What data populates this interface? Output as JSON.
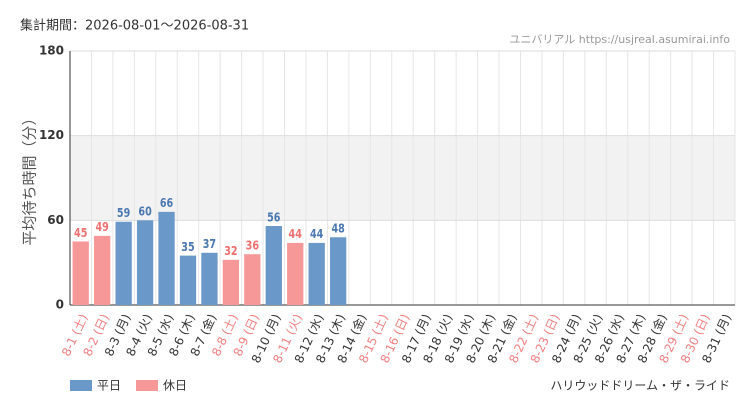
{
  "chart_data": {
    "type": "bar",
    "title": "集計期間：2026-08-01～2026-08-31",
    "watermark": "ユニバリアル https://usjreal.asumirai.info",
    "attraction": "ハリウッドドリーム・ザ・ライド",
    "y_label": "平均待ち時間（分）",
    "categories": [
      "8-1 (土)",
      "8-2 (日)",
      "8-3 (月)",
      "8-4 (火)",
      "8-5 (水)",
      "8-6 (木)",
      "8-7 (金)",
      "8-8 (土)",
      "8-9 (日)",
      "8-10 (月)",
      "8-11 (火)",
      "8-12 (水)",
      "8-13 (木)",
      "8-14 (金)",
      "8-15 (土)",
      "8-16 (日)",
      "8-17 (月)",
      "8-18 (火)",
      "8-19 (水)",
      "8-20 (木)",
      "8-21 (金)",
      "8-22 (土)",
      "8-23 (日)",
      "8-24 (月)",
      "8-25 (火)",
      "8-26 (水)",
      "8-27 (木)",
      "8-28 (金)",
      "8-29 (土)",
      "8-30 (日)",
      "8-31 (月)"
    ],
    "category_colors": [
      "#f08080",
      "#f08080",
      "#333333",
      "#333333",
      "#333333",
      "#333333",
      "#333333",
      "#f08080",
      "#f08080",
      "#333333",
      "#f08080",
      "#333333",
      "#333333",
      "#333333",
      "#f08080",
      "#f08080",
      "#333333",
      "#333333",
      "#333333",
      "#333333",
      "#333333",
      "#f08080",
      "#f08080",
      "#333333",
      "#333333",
      "#333333",
      "#333333",
      "#333333",
      "#f08080",
      "#f08080",
      "#333333"
    ],
    "series": [
      {
        "name": "平日",
        "color": "#6a98c8",
        "label_color": "#4a78b0",
        "values": [
          null,
          null,
          59,
          60,
          66,
          35,
          37,
          null,
          null,
          56,
          null,
          44,
          48,
          null,
          null,
          null,
          null,
          null,
          null,
          null,
          null,
          null,
          null,
          null,
          null,
          null,
          null,
          null,
          null,
          null,
          null
        ]
      },
      {
        "name": "休日",
        "color": "#f79898",
        "label_color": "#f07070",
        "values": [
          45,
          49,
          null,
          null,
          null,
          null,
          null,
          32,
          36,
          null,
          44,
          null,
          null,
          null,
          null,
          null,
          null,
          null,
          null,
          null,
          null,
          null,
          null,
          null,
          null,
          null,
          null,
          null,
          null,
          null,
          null
        ]
      }
    ],
    "ylim": [
      0,
      180
    ],
    "yticks": [
      0,
      60,
      120,
      180
    ],
    "grid": true
  }
}
